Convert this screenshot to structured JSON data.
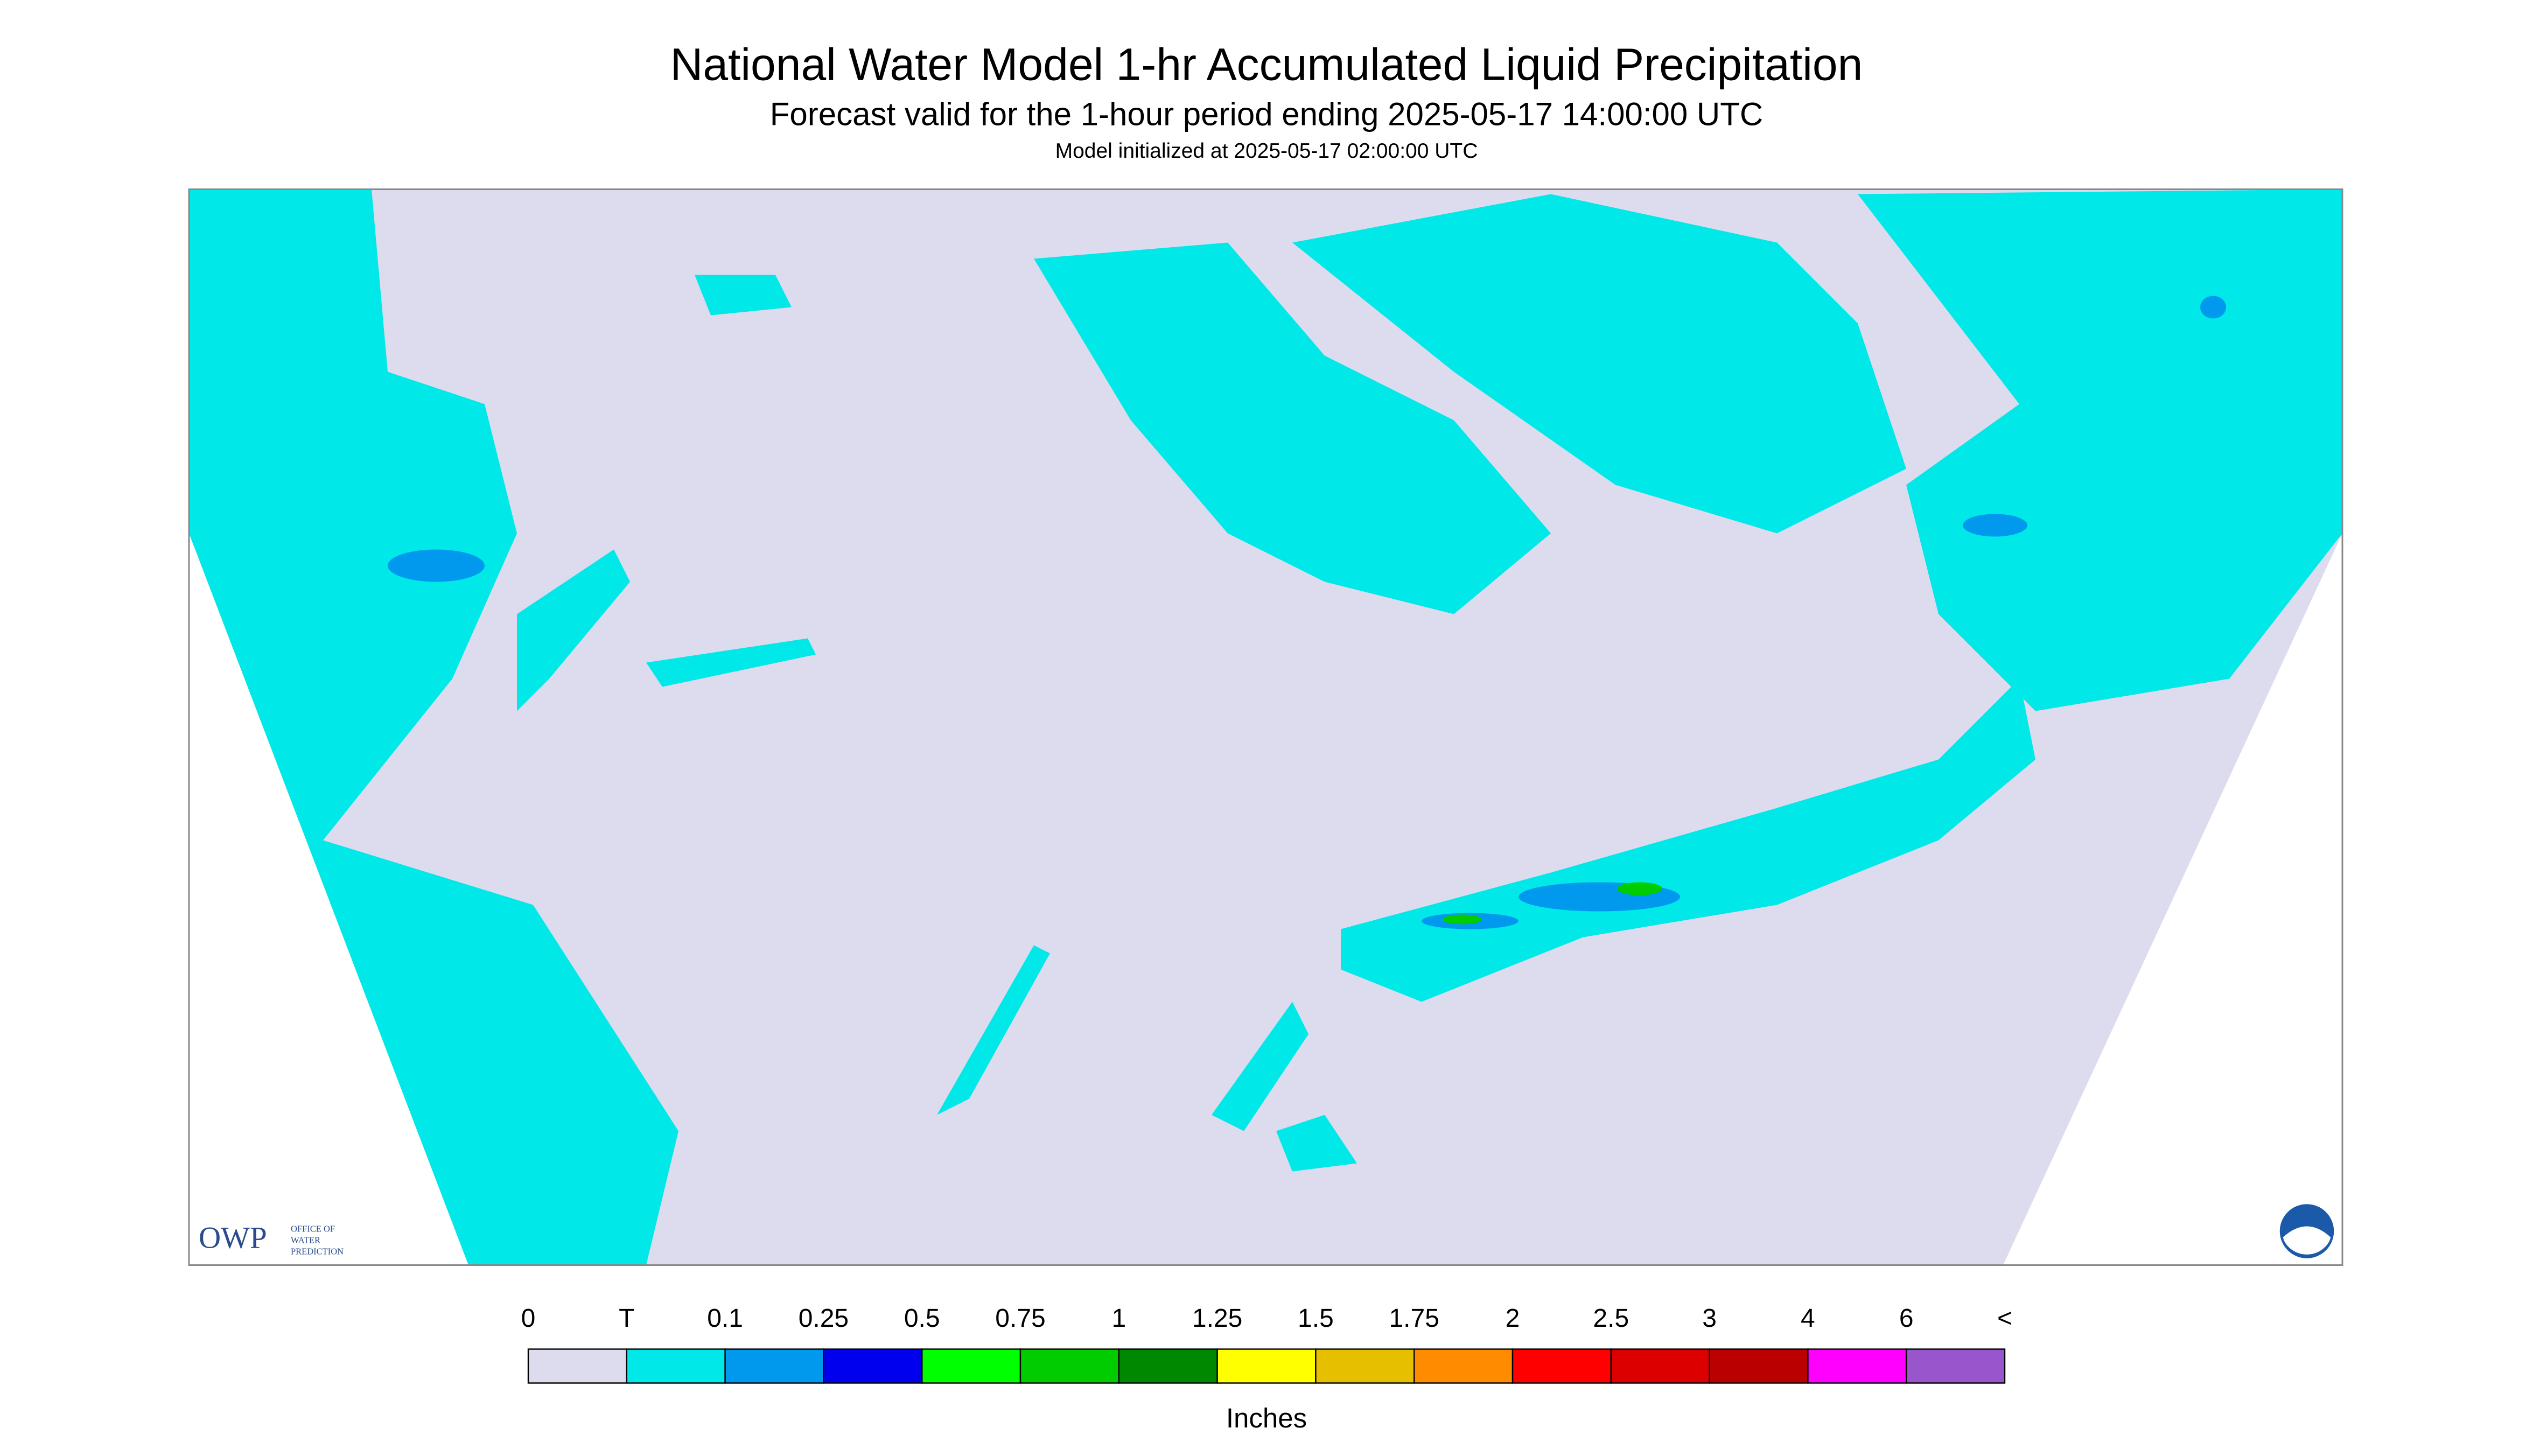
{
  "header": {
    "title": "National Water Model 1-hr Accumulated Liquid Precipitation",
    "subtitle": "Forecast valid for the 1-hour period ending 2025-05-17 14:00:00 UTC",
    "note": "Model initialized at 2025-05-17 02:00:00 UTC"
  },
  "logo": {
    "abbr": "OWP",
    "name": [
      "OFFICE OF",
      "WATER",
      "PREDICTION"
    ]
  },
  "legend": {
    "labels": [
      "0",
      "T",
      "0.1",
      "0.25",
      "0.5",
      "0.75",
      "1",
      "1.25",
      "1.5",
      "1.75",
      "2",
      "2.5",
      "3",
      "4",
      "6",
      "<"
    ],
    "colors": [
      "#dcdcee",
      "#00e8e8",
      "#0099ee",
      "#0000ee",
      "#00ff00",
      "#00cc00",
      "#008800",
      "#ffff00",
      "#e6bf00",
      "#ff8c00",
      "#ff0000",
      "#dd0000",
      "#bb0000",
      "#ff00ff",
      "#9955cc"
    ],
    "unit": "Inches"
  }
}
